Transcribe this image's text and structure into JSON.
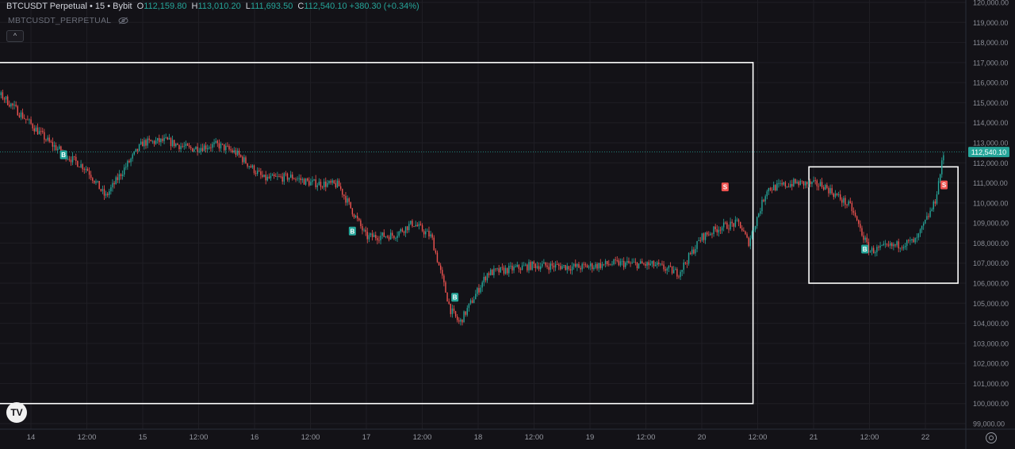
{
  "header": {
    "symbol": "BTCUSDT Perpetual",
    "sep1": "•",
    "interval": "15",
    "sep2": "•",
    "exchange": "Bybit",
    "o_label": "O",
    "open": "112,159.80",
    "h_label": "H",
    "high": "113,010.20",
    "l_label": "L",
    "low": "111,693.50",
    "c_label": "C",
    "close": "112,540.10",
    "change": "+380.30 (+0.34%)"
  },
  "indicator_label": "MBTCUSDT_PERPETUAL",
  "icons": {
    "visibility": "eye-crossed-icon",
    "collapse": "chevron-up-icon",
    "logo": "tradingview-logo",
    "settings": "gear-icon"
  },
  "collapse_glyph": "^",
  "logo_text": "TV",
  "colors": {
    "background": "#131217",
    "up": "#26a69a",
    "down": "#ef5350",
    "grid": "#1f1e24",
    "price_line": "#26a69a",
    "box": "#ffffff",
    "buy_marker": "#26a69a",
    "sell_marker": "#ef5350"
  },
  "chart_data": {
    "type": "candlestick",
    "symbol": "BTCUSDT Perpetual",
    "interval": "15",
    "ylim": [
      99000,
      120000
    ],
    "y_ticks": [
      "120,000.00",
      "119,000.00",
      "118,000.00",
      "117,000.00",
      "116,000.00",
      "115,000.00",
      "114,000.00",
      "113,000.00",
      "112,000.00",
      "111,000.00",
      "110,000.00",
      "109,000.00",
      "108,000.00",
      "107,000.00",
      "106,000.00",
      "105,000.00",
      "104,000.00",
      "103,000.00",
      "102,000.00",
      "101,000.00",
      "100,000.00",
      "99,000.00"
    ],
    "x_ticks": [
      "14",
      "12:00",
      "15",
      "12:00",
      "16",
      "12:00",
      "17",
      "12:00",
      "18",
      "12:00",
      "19",
      "12:00",
      "20",
      "12:00",
      "21",
      "12:00",
      "22"
    ],
    "last_price": 112540.1,
    "last_price_label": "112,540.10",
    "price_path": [
      [
        "13 09:00",
        114300
      ],
      [
        "13 12:00",
        115800
      ],
      [
        "13 18:00",
        115300
      ],
      [
        "14 04:00",
        113000
      ],
      [
        "14 08:00",
        112300
      ],
      [
        "14 12:00",
        111700
      ],
      [
        "14 16:00",
        110300
      ],
      [
        "14 20:00",
        111700
      ],
      [
        "15 00:00",
        113000
      ],
      [
        "15 05:00",
        113100
      ],
      [
        "15 10:00",
        112700
      ],
      [
        "15 16:00",
        112900
      ],
      [
        "15 20:00",
        112500
      ],
      [
        "16 02:00",
        111200
      ],
      [
        "16 08:00",
        111300
      ],
      [
        "16 12:00",
        111000
      ],
      [
        "16 18:00",
        110900
      ],
      [
        "17 00:00",
        108300
      ],
      [
        "17 06:00",
        108400
      ],
      [
        "17 10:00",
        109000
      ],
      [
        "17 14:00",
        108300
      ],
      [
        "17 18:00",
        104700
      ],
      [
        "17 20:00",
        104000
      ],
      [
        "18 02:00",
        106500
      ],
      [
        "18 12:00",
        106900
      ],
      [
        "18 22:00",
        106800
      ],
      [
        "19 06:00",
        107000
      ],
      [
        "19 14:00",
        106900
      ],
      [
        "19 19:00",
        106500
      ],
      [
        "20 00:00",
        108300
      ],
      [
        "20 04:00",
        108800
      ],
      [
        "20 08:00",
        109000
      ],
      [
        "20 10:00",
        108000
      ],
      [
        "20 14:00",
        110700
      ],
      [
        "20 20:00",
        111000
      ],
      [
        "21 02:00",
        110900
      ],
      [
        "21 08:00",
        109800
      ],
      [
        "21 12:00",
        107600
      ],
      [
        "21 18:00",
        107900
      ],
      [
        "21 22:00",
        108100
      ],
      [
        "22 02:00",
        110000
      ],
      [
        "22 04:00",
        112540
      ]
    ],
    "signals": [
      {
        "label": "B",
        "type": "buy",
        "time": "14 07:00",
        "price": 112400
      },
      {
        "label": "B",
        "type": "buy",
        "time": "16 21:00",
        "price": 108600
      },
      {
        "label": "B",
        "type": "buy",
        "time": "17 19:00",
        "price": 105300
      },
      {
        "label": "S",
        "type": "sell",
        "time": "20 05:00",
        "price": 110800
      },
      {
        "label": "B",
        "type": "buy",
        "time": "21 11:00",
        "price": 107700
      },
      {
        "label": "S",
        "type": "sell",
        "time": "22 04:00",
        "price": 110900
      }
    ],
    "rectangles": [
      {
        "start": "13 10:00",
        "end": "20 11:00",
        "top": 117000,
        "bottom": 100000
      },
      {
        "start": "20 23:00",
        "end": "22 07:00",
        "top": 111800,
        "bottom": 106000
      }
    ]
  }
}
